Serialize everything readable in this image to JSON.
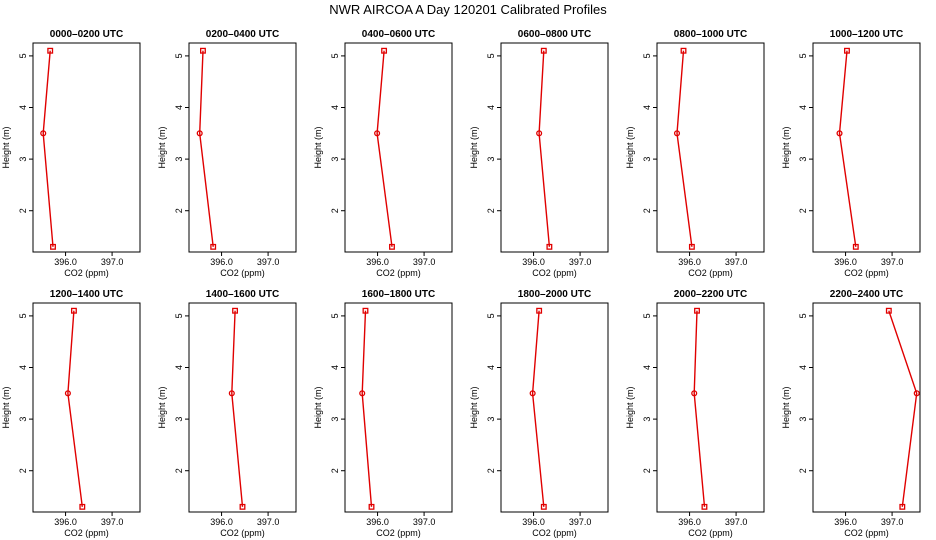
{
  "figure": {
    "title": "NWR AIRCOA A  Day 120201  Calibrated Profiles",
    "colors": {
      "series": "#e00000",
      "axes": "#000000",
      "background": "#ffffff"
    }
  },
  "chart_data": [
    {
      "type": "line",
      "title": "0000–0200 UTC",
      "xlabel": "CO2 (ppm)",
      "ylabel": "Height (m)",
      "xlim": [
        395.3,
        397.6
      ],
      "ylim": [
        1.2,
        5.25
      ],
      "xticks": [
        396.0,
        397.0
      ],
      "xtick_labels": [
        "396.0",
        "397.0"
      ],
      "yticks": [
        2,
        3,
        4,
        5
      ],
      "ytick_labels": [
        "2",
        "3",
        "4",
        "5"
      ],
      "x": [
        395.67,
        395.52,
        395.73
      ],
      "y": [
        5.1,
        3.5,
        1.3
      ]
    },
    {
      "type": "line",
      "title": "0200–0400 UTC",
      "xlabel": "CO2 (ppm)",
      "ylabel": "Height (m)",
      "xlim": [
        395.3,
        397.6
      ],
      "ylim": [
        1.2,
        5.25
      ],
      "xticks": [
        396.0,
        397.0
      ],
      "xtick_labels": [
        "396.0",
        "397.0"
      ],
      "yticks": [
        2,
        3,
        4,
        5
      ],
      "ytick_labels": [
        "2",
        "3",
        "4",
        "5"
      ],
      "x": [
        395.6,
        395.53,
        395.82
      ],
      "y": [
        5.1,
        3.5,
        1.3
      ]
    },
    {
      "type": "line",
      "title": "0400–0600 UTC",
      "xlabel": "CO2 (ppm)",
      "ylabel": "Height (m)",
      "xlim": [
        395.3,
        397.6
      ],
      "ylim": [
        1.2,
        5.25
      ],
      "xticks": [
        396.0,
        397.0
      ],
      "xtick_labels": [
        "396.0",
        "397.0"
      ],
      "yticks": [
        2,
        3,
        4,
        5
      ],
      "ytick_labels": [
        "2",
        "3",
        "4",
        "5"
      ],
      "x": [
        396.14,
        395.99,
        396.31
      ],
      "y": [
        5.1,
        3.5,
        1.3
      ]
    },
    {
      "type": "line",
      "title": "0600–0800 UTC",
      "xlabel": "CO2 (ppm)",
      "ylabel": "Height (m)",
      "xlim": [
        395.3,
        397.6
      ],
      "ylim": [
        1.2,
        5.25
      ],
      "xticks": [
        396.0,
        397.0
      ],
      "xtick_labels": [
        "396.0",
        "397.0"
      ],
      "yticks": [
        2,
        3,
        4,
        5
      ],
      "ytick_labels": [
        "2",
        "3",
        "4",
        "5"
      ],
      "x": [
        396.22,
        396.12,
        396.34
      ],
      "y": [
        5.1,
        3.5,
        1.3
      ]
    },
    {
      "type": "line",
      "title": "0800–1000 UTC",
      "xlabel": "CO2 (ppm)",
      "ylabel": "Height (m)",
      "xlim": [
        395.3,
        397.6
      ],
      "ylim": [
        1.2,
        5.25
      ],
      "xticks": [
        396.0,
        397.0
      ],
      "xtick_labels": [
        "396.0",
        "397.0"
      ],
      "yticks": [
        2,
        3,
        4,
        5
      ],
      "ytick_labels": [
        "2",
        "3",
        "4",
        "5"
      ],
      "x": [
        395.87,
        395.73,
        396.05
      ],
      "y": [
        5.1,
        3.5,
        1.3
      ]
    },
    {
      "type": "line",
      "title": "1000–1200 UTC",
      "xlabel": "CO2 (ppm)",
      "ylabel": "Height (m)",
      "xlim": [
        395.3,
        397.6
      ],
      "ylim": [
        1.2,
        5.25
      ],
      "xticks": [
        396.0,
        397.0
      ],
      "xtick_labels": [
        "396.0",
        "397.0"
      ],
      "yticks": [
        2,
        3,
        4,
        5
      ],
      "ytick_labels": [
        "2",
        "3",
        "4",
        "5"
      ],
      "x": [
        396.03,
        395.87,
        396.22
      ],
      "y": [
        5.1,
        3.5,
        1.3
      ]
    },
    {
      "type": "line",
      "title": "1200–1400 UTC",
      "xlabel": "CO2 (ppm)",
      "ylabel": "Height (m)",
      "xlim": [
        395.3,
        397.6
      ],
      "ylim": [
        1.2,
        5.25
      ],
      "xticks": [
        396.0,
        397.0
      ],
      "xtick_labels": [
        "396.0",
        "397.0"
      ],
      "yticks": [
        2,
        3,
        4,
        5
      ],
      "ytick_labels": [
        "2",
        "3",
        "4",
        "5"
      ],
      "x": [
        396.18,
        396.05,
        396.36
      ],
      "y": [
        5.1,
        3.5,
        1.3
      ]
    },
    {
      "type": "line",
      "title": "1400–1600 UTC",
      "xlabel": "CO2 (ppm)",
      "ylabel": "Height (m)",
      "xlim": [
        395.3,
        397.6
      ],
      "ylim": [
        1.2,
        5.25
      ],
      "xticks": [
        396.0,
        397.0
      ],
      "xtick_labels": [
        "396.0",
        "397.0"
      ],
      "yticks": [
        2,
        3,
        4,
        5
      ],
      "ytick_labels": [
        "2",
        "3",
        "4",
        "5"
      ],
      "x": [
        396.29,
        396.22,
        396.45
      ],
      "y": [
        5.1,
        3.5,
        1.3
      ]
    },
    {
      "type": "line",
      "title": "1600–1800 UTC",
      "xlabel": "CO2 (ppm)",
      "ylabel": "Height (m)",
      "xlim": [
        395.3,
        397.6
      ],
      "ylim": [
        1.2,
        5.25
      ],
      "xticks": [
        396.0,
        397.0
      ],
      "xtick_labels": [
        "396.0",
        "397.0"
      ],
      "yticks": [
        2,
        3,
        4,
        5
      ],
      "ytick_labels": [
        "2",
        "3",
        "4",
        "5"
      ],
      "x": [
        395.74,
        395.67,
        395.87
      ],
      "y": [
        5.1,
        3.5,
        1.3
      ]
    },
    {
      "type": "line",
      "title": "1800–2000 UTC",
      "xlabel": "CO2 (ppm)",
      "ylabel": "Height (m)",
      "xlim": [
        395.3,
        397.6
      ],
      "ylim": [
        1.2,
        5.25
      ],
      "xticks": [
        396.0,
        397.0
      ],
      "xtick_labels": [
        "396.0",
        "397.0"
      ],
      "yticks": [
        2,
        3,
        4,
        5
      ],
      "ytick_labels": [
        "2",
        "3",
        "4",
        "5"
      ],
      "x": [
        396.12,
        395.98,
        396.22
      ],
      "y": [
        5.1,
        3.5,
        1.3
      ]
    },
    {
      "type": "line",
      "title": "2000–2200 UTC",
      "xlabel": "CO2 (ppm)",
      "ylabel": "Height (m)",
      "xlim": [
        395.3,
        397.6
      ],
      "ylim": [
        1.2,
        5.25
      ],
      "xticks": [
        396.0,
        397.0
      ],
      "xtick_labels": [
        "396.0",
        "397.0"
      ],
      "yticks": [
        2,
        3,
        4,
        5
      ],
      "ytick_labels": [
        "2",
        "3",
        "4",
        "5"
      ],
      "x": [
        396.16,
        396.1,
        396.32
      ],
      "y": [
        5.1,
        3.5,
        1.3
      ]
    },
    {
      "type": "line",
      "title": "2200–2400 UTC",
      "xlabel": "CO2 (ppm)",
      "ylabel": "Height (m)",
      "xlim": [
        395.3,
        397.6
      ],
      "ylim": [
        1.2,
        5.25
      ],
      "xticks": [
        396.0,
        397.0
      ],
      "xtick_labels": [
        "396.0",
        "397.0"
      ],
      "yticks": [
        2,
        3,
        4,
        5
      ],
      "ytick_labels": [
        "2",
        "3",
        "4",
        "5"
      ],
      "x": [
        396.93,
        397.53,
        397.22
      ],
      "y": [
        5.1,
        3.5,
        1.3
      ]
    }
  ]
}
